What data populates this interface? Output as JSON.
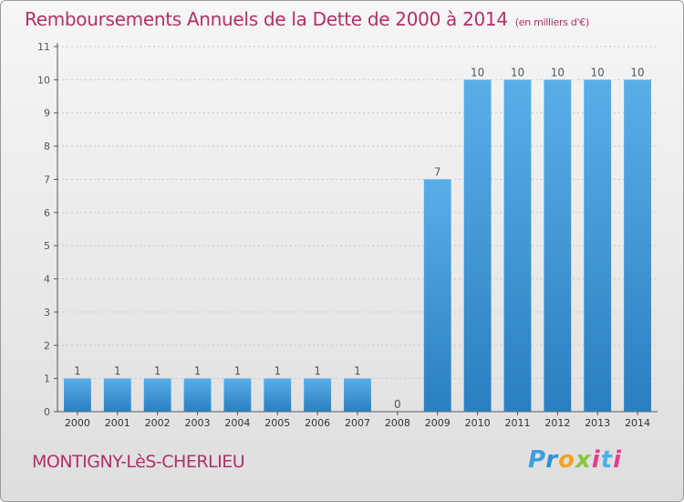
{
  "header": {
    "title": "Remboursements Annuels de la Dette de 2000 à 2014",
    "subtitle": "(en milliers d'€)"
  },
  "footer": {
    "commune": "MONTIGNY-LèS-CHERLIEU",
    "brand": [
      "P",
      "r",
      "o",
      "x",
      "i",
      "t",
      "i"
    ]
  },
  "colors": {
    "title": "#b0306a",
    "bar_light": "#5aaee8",
    "bar_dark": "#2a7fc0",
    "axis": "#555555",
    "grid": "#c8c8c8"
  },
  "chart_data": {
    "type": "bar",
    "title": "Remboursements Annuels de la Dette de 2000 à 2014",
    "subtitle": "(en milliers d'€)",
    "categories": [
      "2000",
      "2001",
      "2002",
      "2003",
      "2004",
      "2005",
      "2006",
      "2007",
      "2008",
      "2009",
      "2010",
      "2011",
      "2012",
      "2013",
      "2014"
    ],
    "values": [
      1,
      1,
      1,
      1,
      1,
      1,
      1,
      1,
      0,
      7,
      10,
      10,
      10,
      10,
      10
    ],
    "ylim": [
      0,
      11
    ],
    "yticks": [
      0,
      1,
      2,
      3,
      4,
      5,
      6,
      7,
      8,
      9,
      10,
      11
    ],
    "grid": true,
    "data_labels": true
  }
}
